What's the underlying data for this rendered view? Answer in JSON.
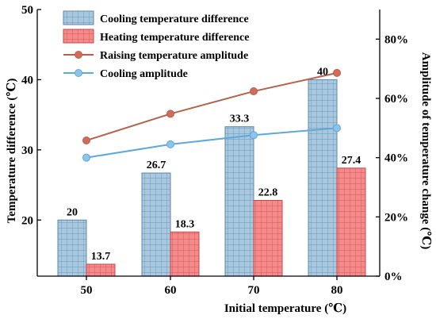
{
  "chart_data": {
    "type": "bar",
    "categories": [
      "50",
      "60",
      "70",
      "80"
    ],
    "xlabel": "Initial temperature (℃)",
    "ylabel": "Temperature difference (℃)",
    "y2label": "Amplitude of temperature change (℃)",
    "ylim": [
      12,
      50
    ],
    "yticks": [
      "20",
      "30",
      "40",
      "50"
    ],
    "y2lim": [
      0,
      90
    ],
    "y2ticks": [
      "0%",
      "20%",
      "40%",
      "60%",
      "80%"
    ],
    "legend_position": "top-left",
    "grid": false,
    "series": [
      {
        "name": "Cooling temperature difference",
        "kind": "bar",
        "axis": "left",
        "color": "#a8c8e0",
        "edge": "#5f86a6",
        "pattern": "grid",
        "values": [
          20,
          26.7,
          33.3,
          40
        ],
        "labels": [
          "20",
          "26.7",
          "33.3",
          "40"
        ]
      },
      {
        "name": "Heating temperature difference",
        "kind": "bar",
        "axis": "left",
        "color": "#f48a8a",
        "edge": "#c84848",
        "pattern": "grid",
        "values": [
          13.7,
          18.3,
          22.8,
          27.4
        ],
        "labels": [
          "13.7",
          "18.3",
          "22.8",
          "27.4"
        ]
      },
      {
        "name": "Raising temperature amplitude",
        "kind": "line",
        "axis": "right",
        "color": "#b5614e",
        "marker": "#d46a5a",
        "values": [
          45.8,
          54.8,
          62.4,
          68.6
        ]
      },
      {
        "name": "Cooling amplitude",
        "kind": "line",
        "axis": "right",
        "color": "#5ea8dc",
        "marker": "#8cc4ea",
        "values": [
          40,
          44.5,
          47.6,
          50
        ]
      }
    ]
  }
}
